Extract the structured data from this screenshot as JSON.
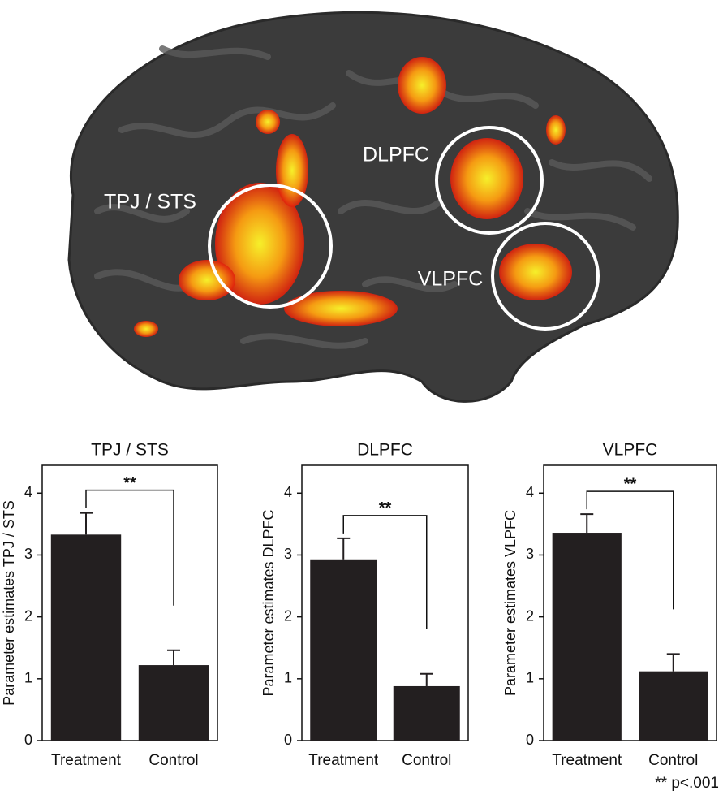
{
  "image_labels": [
    "TPJ / STS",
    "DLPFC",
    "VLPFC"
  ],
  "chart_data": [
    {
      "type": "bar",
      "title": "TPJ / STS",
      "ylabel": "Parameter estimates TPJ / STS",
      "categories": [
        "Treatment",
        "Control"
      ],
      "values": [
        3.33,
        1.22
      ],
      "errors": [
        0.35,
        0.24
      ],
      "color": "#231f20",
      "ylim": [
        0,
        4.45
      ],
      "yticks": [
        0,
        1,
        2,
        3,
        4
      ],
      "significance": "**"
    },
    {
      "type": "bar",
      "title": "DLPFC",
      "ylabel": "Parameter estimates DLPFC",
      "categories": [
        "Treatment",
        "Control"
      ],
      "values": [
        2.93,
        0.88
      ],
      "errors": [
        0.34,
        0.2
      ],
      "color": "#231f20",
      "ylim": [
        0,
        4.45
      ],
      "yticks": [
        0,
        1,
        2,
        3,
        4
      ],
      "significance": "**"
    },
    {
      "type": "bar",
      "title": "VLPFC",
      "ylabel": "Parameter estimates VLPFC",
      "categories": [
        "Treatment",
        "Control"
      ],
      "values": [
        3.36,
        1.12
      ],
      "errors": [
        0.3,
        0.28
      ],
      "color": "#231f20",
      "ylim": [
        0,
        4.45
      ],
      "yticks": [
        0,
        1,
        2,
        3,
        4
      ],
      "significance": "**"
    }
  ],
  "footnote": "** p<.001"
}
